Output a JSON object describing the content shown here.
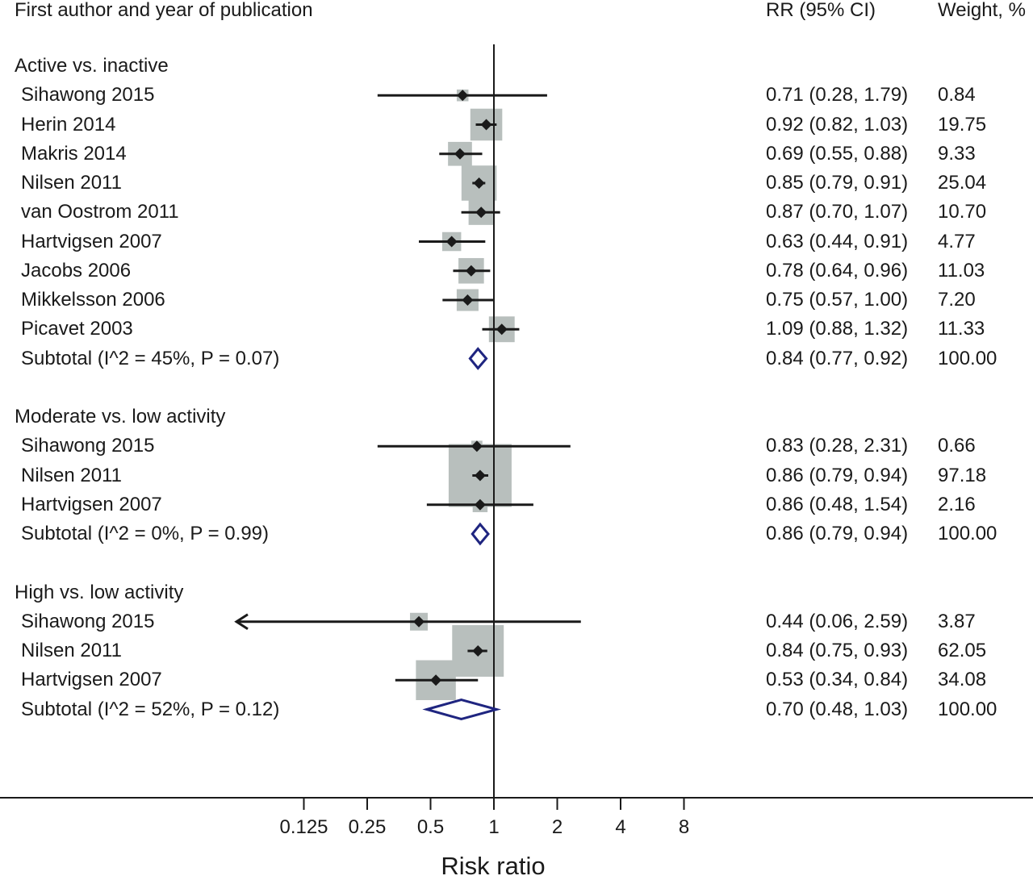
{
  "header": {
    "study_col": "First author and year of publication",
    "rr_col": "RR (95% CI)",
    "weight_col": "Weight, %"
  },
  "chart_data": {
    "type": "forest",
    "xlabel": "Risk ratio",
    "x_scale": "log",
    "reference_line": 1,
    "x_ticks": [
      0.125,
      0.25,
      0.5,
      1,
      2,
      4,
      8
    ],
    "x_tick_labels": [
      "0.125",
      "0.25",
      "0.5",
      "1",
      "2",
      "4",
      "8"
    ],
    "colors": {
      "point": "#1a1a1a",
      "weight_box": "#b8bfbd",
      "diamond": "#1f2580",
      "line": "#1a1a1a"
    },
    "groups": [
      {
        "label": "Active vs. inactive",
        "studies": [
          {
            "label": "Sihawong 2015",
            "rr": 0.71,
            "lo": 0.28,
            "hi": 1.79,
            "rr_text": "0.71 (0.28, 1.79)",
            "weight": 0.84,
            "weight_text": "0.84"
          },
          {
            "label": "Herin 2014",
            "rr": 0.92,
            "lo": 0.82,
            "hi": 1.03,
            "rr_text": "0.92 (0.82, 1.03)",
            "weight": 19.75,
            "weight_text": "19.75"
          },
          {
            "label": "Makris 2014",
            "rr": 0.69,
            "lo": 0.55,
            "hi": 0.88,
            "rr_text": "0.69 (0.55, 0.88)",
            "weight": 9.33,
            "weight_text": "9.33"
          },
          {
            "label": "Nilsen 2011",
            "rr": 0.85,
            "lo": 0.79,
            "hi": 0.91,
            "rr_text": "0.85 (0.79, 0.91)",
            "weight": 25.04,
            "weight_text": "25.04"
          },
          {
            "label": "van Oostrom 2011",
            "rr": 0.87,
            "lo": 0.7,
            "hi": 1.07,
            "rr_text": "0.87 (0.70, 1.07)",
            "weight": 10.7,
            "weight_text": "10.70"
          },
          {
            "label": "Hartvigsen 2007",
            "rr": 0.63,
            "lo": 0.44,
            "hi": 0.91,
            "rr_text": "0.63 (0.44, 0.91)",
            "weight": 4.77,
            "weight_text": "4.77"
          },
          {
            "label": "Jacobs 2006",
            "rr": 0.78,
            "lo": 0.64,
            "hi": 0.96,
            "rr_text": "0.78 (0.64, 0.96)",
            "weight": 11.03,
            "weight_text": "11.03"
          },
          {
            "label": "Mikkelsson 2006",
            "rr": 0.75,
            "lo": 0.57,
            "hi": 1.0,
            "rr_text": "0.75 (0.57, 1.00)",
            "weight": 7.2,
            "weight_text": "7.20"
          },
          {
            "label": "Picavet 2003",
            "rr": 1.09,
            "lo": 0.88,
            "hi": 1.32,
            "rr_text": "1.09 (0.88, 1.32)",
            "weight": 11.33,
            "weight_text": "11.33"
          }
        ],
        "subtotal": {
          "label": "Subtotal (I^2 = 45%, P = 0.07)",
          "rr": 0.84,
          "lo": 0.77,
          "hi": 0.92,
          "rr_text": "0.84 (0.77, 0.92)",
          "weight_text": "100.00"
        }
      },
      {
        "label": "Moderate vs. low activity",
        "studies": [
          {
            "label": "Sihawong 2015",
            "rr": 0.83,
            "lo": 0.28,
            "hi": 2.31,
            "rr_text": "0.83 (0.28, 2.31)",
            "weight": 0.66,
            "weight_text": "0.66"
          },
          {
            "label": "Nilsen 2011",
            "rr": 0.86,
            "lo": 0.79,
            "hi": 0.94,
            "rr_text": "0.86 (0.79, 0.94)",
            "weight": 97.18,
            "weight_text": "97.18"
          },
          {
            "label": "Hartvigsen 2007",
            "rr": 0.86,
            "lo": 0.48,
            "hi": 1.54,
            "rr_text": "0.86 (0.48, 1.54)",
            "weight": 2.16,
            "weight_text": "2.16"
          }
        ],
        "subtotal": {
          "label": "Subtotal (I^2 = 0%, P = 0.99)",
          "rr": 0.86,
          "lo": 0.79,
          "hi": 0.94,
          "rr_text": "0.86 (0.79, 0.94)",
          "weight_text": "100.00"
        }
      },
      {
        "label": "High vs. low activity",
        "studies": [
          {
            "label": "Sihawong 2015",
            "rr": 0.44,
            "lo": 0.06,
            "hi": 2.59,
            "rr_text": "0.44 (0.06, 2.59)",
            "weight": 3.87,
            "weight_text": "3.87",
            "lo_truncated": true
          },
          {
            "label": "Nilsen 2011",
            "rr": 0.84,
            "lo": 0.75,
            "hi": 0.93,
            "rr_text": "0.84 (0.75, 0.93)",
            "weight": 62.05,
            "weight_text": "62.05"
          },
          {
            "label": "Hartvigsen 2007",
            "rr": 0.53,
            "lo": 0.34,
            "hi": 0.84,
            "rr_text": "0.53 (0.34, 0.84)",
            "weight": 34.08,
            "weight_text": "34.08"
          }
        ],
        "subtotal": {
          "label": "Subtotal (I^2 = 52%, P = 0.12)",
          "rr": 0.7,
          "lo": 0.48,
          "hi": 1.03,
          "rr_text": "0.70 (0.48, 1.03)",
          "weight_text": "100.00"
        }
      }
    ]
  }
}
